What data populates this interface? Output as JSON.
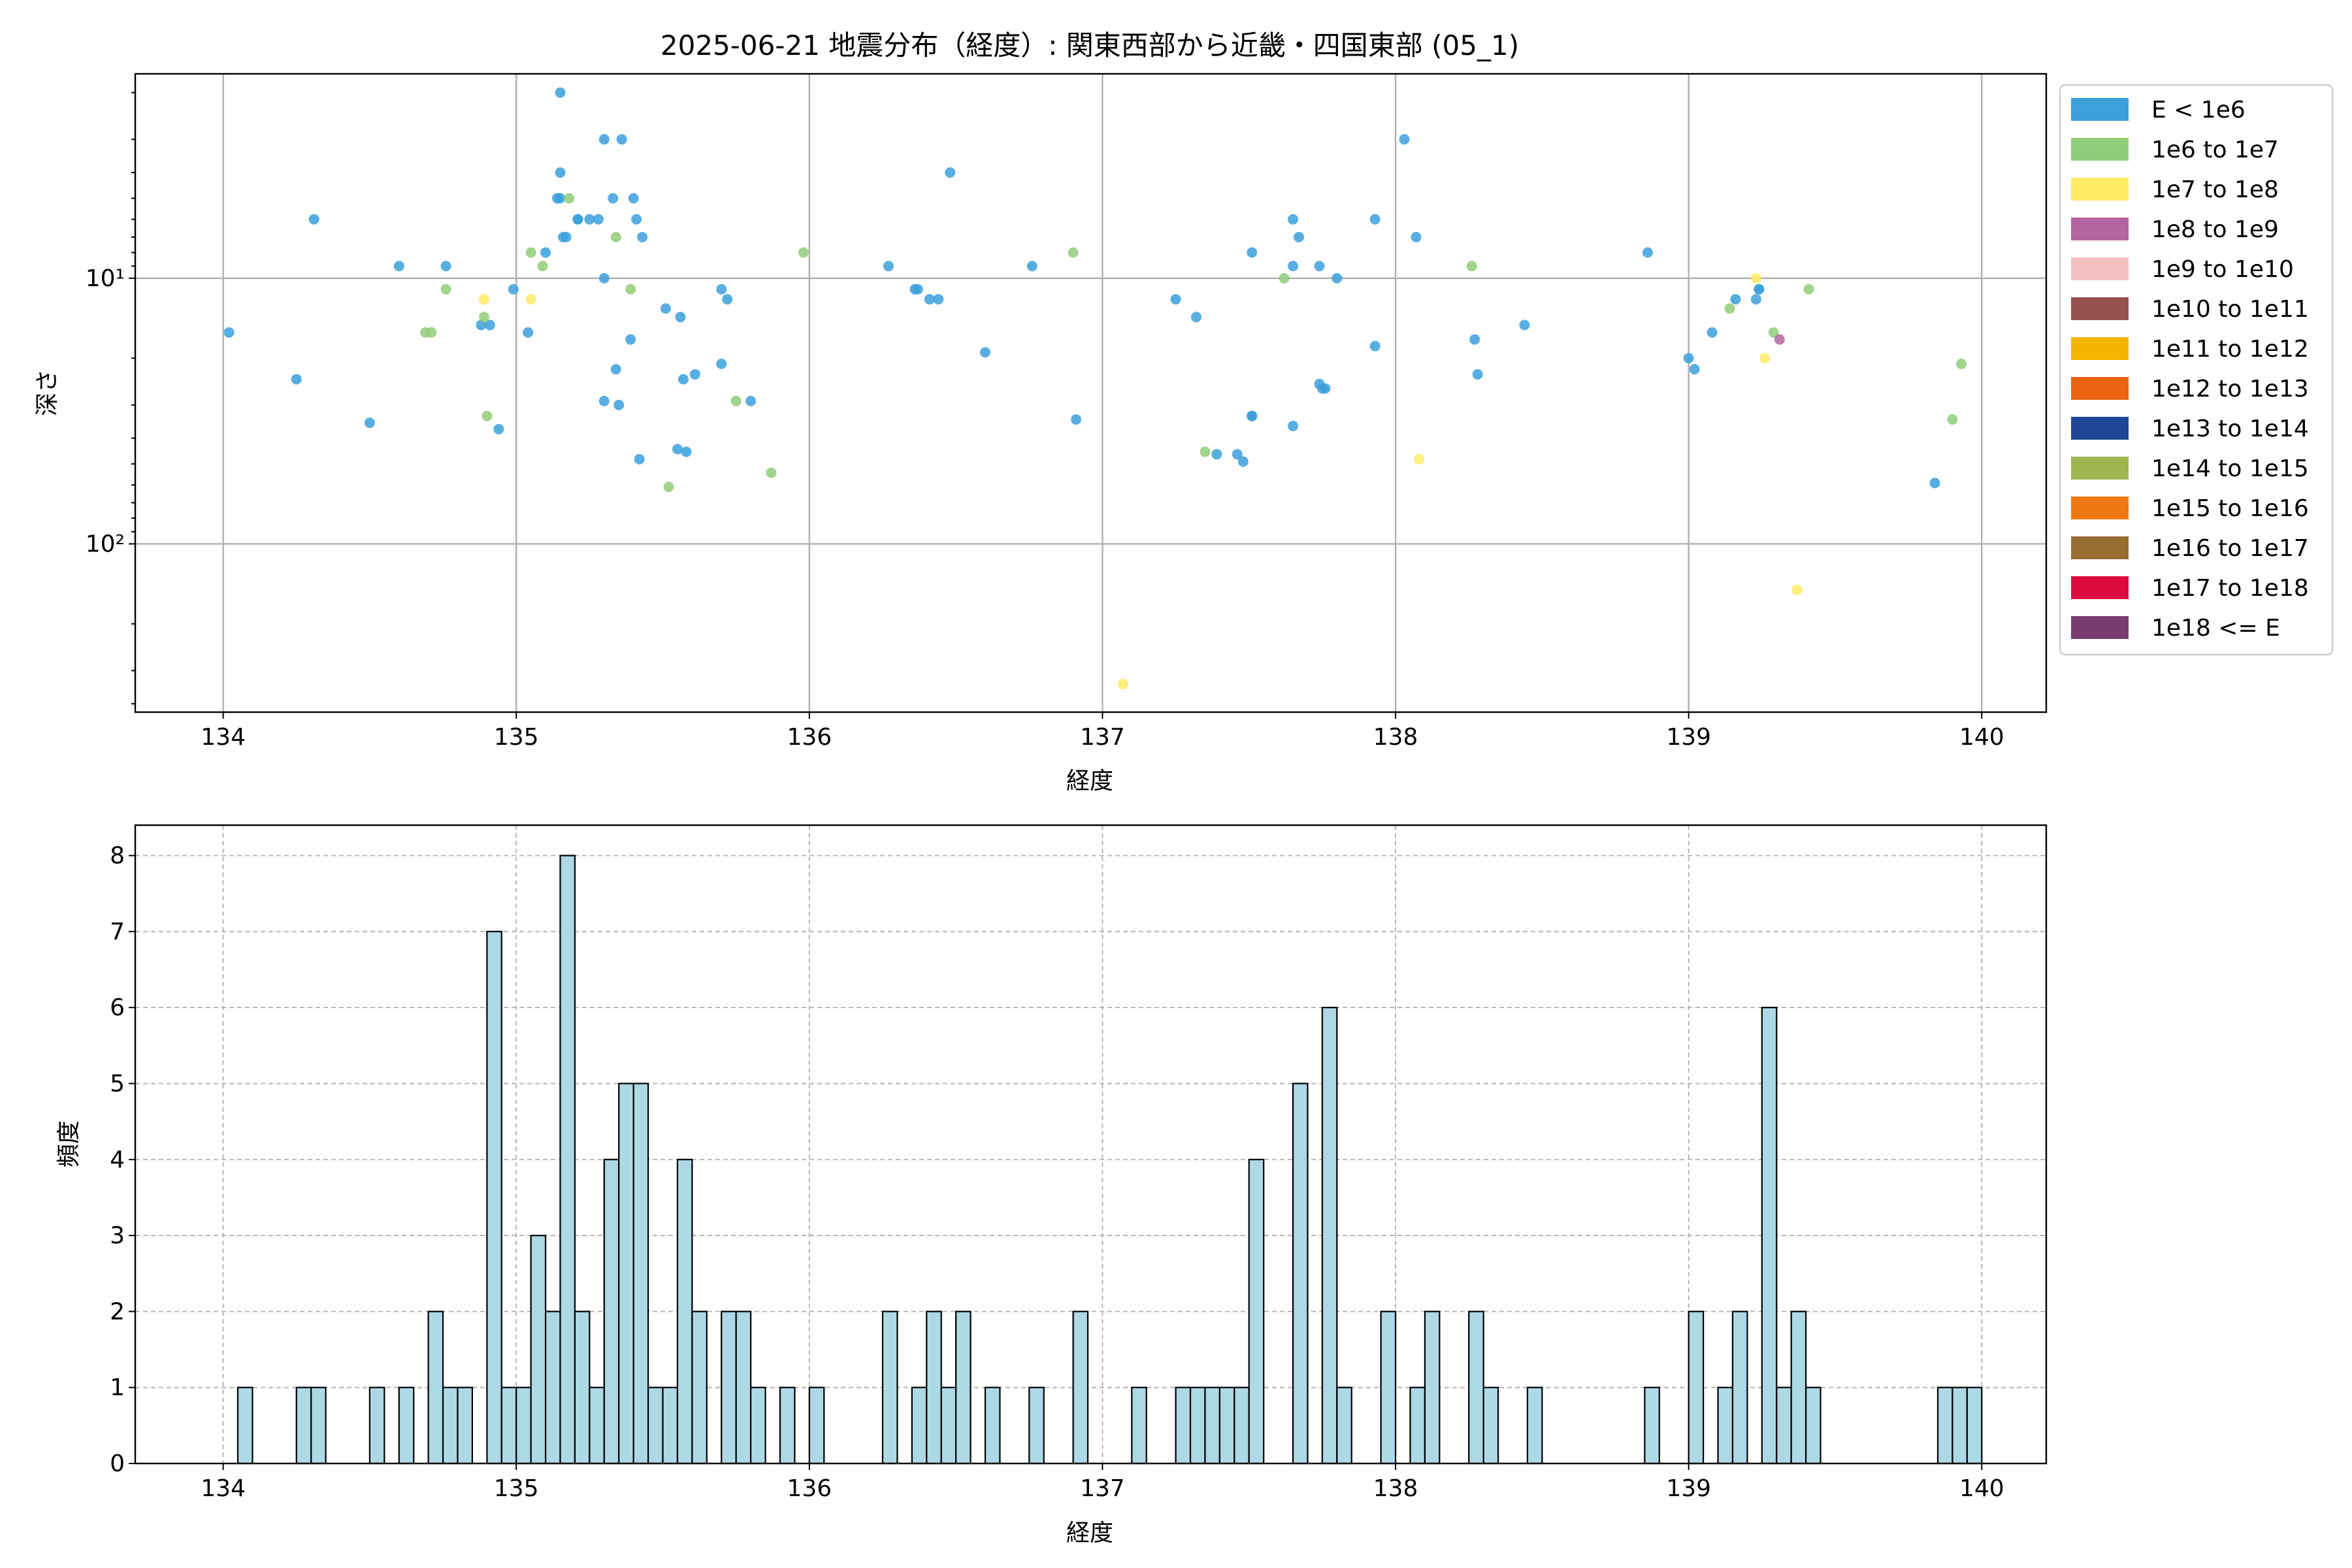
{
  "chart_data": [
    {
      "type": "scatter",
      "title": "2025-06-21 地震分布（経度）: 関東西部から近畿・四国東部 (05_1)",
      "xlabel": "経度",
      "ylabel": "深さ",
      "xlim": [
        133.7,
        140.22
      ],
      "ylim": [
        430,
        1.7
      ],
      "yscale": "log",
      "y_inverted": true,
      "grid": true,
      "x_ticks": [
        "134",
        "135",
        "136",
        "137",
        "138",
        "139",
        "140"
      ],
      "y_ticks": [
        "10¹",
        "10²"
      ],
      "legend_placement": "outside-right",
      "legend": [
        {
          "label": "E < 1e6",
          "color": "#3ca0dc"
        },
        {
          "label": "1e6 to 1e7",
          "color": "#90cd78"
        },
        {
          "label": "1e7 to 1e8",
          "color": "#ffeb64"
        },
        {
          "label": "1e8 to 1e9",
          "color": "#b464a0"
        },
        {
          "label": "1e9 to 1e10",
          "color": "#f5c0c0"
        },
        {
          "label": "1e10 to 1e11",
          "color": "#965050"
        },
        {
          "label": "1e11 to 1e12",
          "color": "#f5b400"
        },
        {
          "label": "1e12 to 1e13",
          "color": "#eb6414"
        },
        {
          "label": "1e13 to 1e14",
          "color": "#1e4696"
        },
        {
          "label": "1e14 to 1e15",
          "color": "#a0b450"
        },
        {
          "label": "1e15 to 1e16",
          "color": "#f07814"
        },
        {
          "label": "1e16 to 1e17",
          "color": "#966e32"
        },
        {
          "label": "1e17 to 1e18",
          "color": "#dc0a3c"
        },
        {
          "label": "1e18 <= E",
          "color": "#783c6e"
        }
      ],
      "series": [
        {
          "name": "E < 1e6",
          "points": [
            [
              134.02,
              16
            ],
            [
              134.25,
              24
            ],
            [
              134.31,
              6
            ],
            [
              134.5,
              35
            ],
            [
              134.6,
              9
            ],
            [
              134.76,
              9
            ],
            [
              134.88,
              15
            ],
            [
              134.91,
              15
            ],
            [
              134.94,
              37
            ],
            [
              134.99,
              11
            ],
            [
              135.04,
              16
            ],
            [
              135.1,
              8
            ],
            [
              135.14,
              5
            ],
            [
              135.15,
              4
            ],
            [
              135.15,
              5
            ],
            [
              135.16,
              7
            ],
            [
              135.17,
              7
            ],
            [
              135.15,
              2
            ],
            [
              135.21,
              6
            ],
            [
              135.21,
              6
            ],
            [
              135.25,
              6
            ],
            [
              135.28,
              6
            ],
            [
              135.3,
              10
            ],
            [
              135.3,
              3
            ],
            [
              135.33,
              5
            ],
            [
              135.36,
              3
            ],
            [
              135.4,
              5
            ],
            [
              135.41,
              6
            ],
            [
              135.43,
              7
            ],
            [
              135.3,
              29
            ],
            [
              135.34,
              22
            ],
            [
              135.35,
              30
            ],
            [
              135.39,
              17
            ],
            [
              135.42,
              48
            ],
            [
              135.51,
              13
            ],
            [
              135.55,
              44
            ],
            [
              135.56,
              14
            ],
            [
              135.57,
              24
            ],
            [
              135.58,
              45
            ],
            [
              135.61,
              23
            ],
            [
              135.7,
              21
            ],
            [
              135.7,
              11
            ],
            [
              135.72,
              12
            ],
            [
              135.8,
              29
            ],
            [
              136.27,
              9
            ],
            [
              136.36,
              11
            ],
            [
              136.37,
              11
            ],
            [
              136.41,
              12
            ],
            [
              136.44,
              12
            ],
            [
              136.48,
              4
            ],
            [
              136.6,
              19
            ],
            [
              136.76,
              9
            ],
            [
              136.91,
              34
            ],
            [
              137.25,
              12
            ],
            [
              137.32,
              14
            ],
            [
              137.39,
              46
            ],
            [
              137.46,
              46
            ],
            [
              137.48,
              49
            ],
            [
              137.51,
              33
            ],
            [
              137.51,
              33
            ],
            [
              137.51,
              8
            ],
            [
              137.65,
              36
            ],
            [
              137.65,
              6
            ],
            [
              137.65,
              9
            ],
            [
              137.67,
              7
            ],
            [
              137.74,
              9
            ],
            [
              137.75,
              26
            ],
            [
              137.76,
              26
            ],
            [
              137.74,
              25
            ],
            [
              137.8,
              10
            ],
            [
              137.93,
              6
            ],
            [
              137.93,
              18
            ],
            [
              138.03,
              3
            ],
            [
              138.07,
              7
            ],
            [
              138.27,
              17
            ],
            [
              138.28,
              23
            ],
            [
              138.44,
              15
            ],
            [
              138.86,
              8
            ],
            [
              139.0,
              20
            ],
            [
              139.02,
              22
            ],
            [
              139.08,
              16
            ],
            [
              139.16,
              12
            ],
            [
              139.23,
              12
            ],
            [
              139.24,
              11
            ],
            [
              139.24,
              11
            ],
            [
              139.84,
              59
            ]
          ]
        },
        {
          "name": "1e6 to 1e7",
          "points": [
            [
              134.69,
              16
            ],
            [
              134.71,
              16
            ],
            [
              134.76,
              11
            ],
            [
              134.89,
              14
            ],
            [
              134.9,
              33
            ],
            [
              135.05,
              8
            ],
            [
              135.09,
              9
            ],
            [
              135.18,
              5
            ],
            [
              135.34,
              7
            ],
            [
              135.39,
              11
            ],
            [
              135.52,
              61
            ],
            [
              135.75,
              29
            ],
            [
              135.87,
              54
            ],
            [
              135.98,
              8
            ],
            [
              136.9,
              8
            ],
            [
              137.35,
              45
            ],
            [
              137.62,
              10
            ],
            [
              138.26,
              9
            ],
            [
              139.14,
              13
            ],
            [
              139.29,
              16
            ],
            [
              139.41,
              11
            ],
            [
              139.9,
              34
            ],
            [
              139.93,
              21
            ]
          ]
        },
        {
          "name": "1e7 to 1e8",
          "points": [
            [
              134.89,
              12
            ],
            [
              135.05,
              12
            ],
            [
              137.07,
              337
            ],
            [
              138.08,
              48
            ],
            [
              139.23,
              10
            ],
            [
              139.26,
              20
            ],
            [
              139.37,
              149
            ]
          ]
        },
        {
          "name": "1e8 to 1e9",
          "points": [
            [
              139.31,
              17
            ]
          ]
        }
      ]
    },
    {
      "type": "bar",
      "title": "",
      "xlabel": "経度",
      "ylabel": "頻度",
      "xlim": [
        133.7,
        140.22
      ],
      "ylim": [
        0,
        8.4
      ],
      "grid": true,
      "x_ticks": [
        "134",
        "135",
        "136",
        "137",
        "138",
        "139",
        "140"
      ],
      "y_ticks": [
        "0",
        "1",
        "2",
        "3",
        "4",
        "5",
        "6",
        "7",
        "8"
      ],
      "bin_width": 0.05,
      "color": "#add8e6",
      "x": [
        134.05,
        134.25,
        134.3,
        134.5,
        134.6,
        134.7,
        134.75,
        134.8,
        134.9,
        134.95,
        135.0,
        135.05,
        135.1,
        135.15,
        135.2,
        135.25,
        135.3,
        135.35,
        135.4,
        135.45,
        135.5,
        135.55,
        135.6,
        135.7,
        135.75,
        135.8,
        135.9,
        136.0,
        136.25,
        136.35,
        136.4,
        136.45,
        136.5,
        136.6,
        136.75,
        136.9,
        137.1,
        137.25,
        137.3,
        137.35,
        137.4,
        137.45,
        137.5,
        137.65,
        137.75,
        137.8,
        137.95,
        138.05,
        138.1,
        138.25,
        138.3,
        138.45,
        138.85,
        139.0,
        139.1,
        139.15,
        139.25,
        139.3,
        139.35,
        139.4,
        139.85,
        139.9,
        139.95
      ],
      "values": [
        1,
        1,
        1,
        1,
        1,
        2,
        1,
        1,
        7,
        1,
        1,
        3,
        2,
        8,
        2,
        1,
        4,
        5,
        5,
        1,
        1,
        4,
        2,
        2,
        2,
        1,
        1,
        1,
        2,
        1,
        2,
        1,
        2,
        1,
        1,
        2,
        1,
        1,
        1,
        1,
        1,
        1,
        4,
        5,
        6,
        1,
        2,
        1,
        2,
        2,
        1,
        1,
        1,
        2,
        1,
        2,
        6,
        1,
        2,
        1,
        1,
        1,
        1
      ]
    }
  ]
}
